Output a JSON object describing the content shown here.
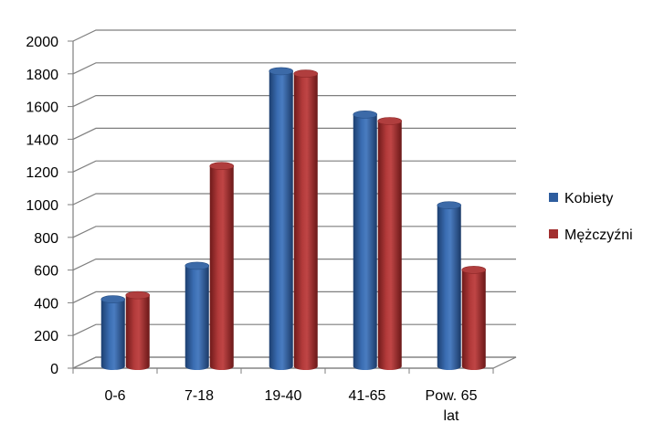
{
  "chart_data": {
    "type": "bar",
    "title": "",
    "xlabel": "",
    "ylabel": "",
    "categories": [
      [
        "0-6"
      ],
      [
        "7-18"
      ],
      [
        "19-40"
      ],
      [
        "41-65"
      ],
      [
        "Pow. 65",
        "lat"
      ]
    ],
    "series": [
      {
        "name": "Kobiety",
        "color": "#2E5D9E",
        "values": [
          410,
          615,
          1805,
          1540,
          985
        ]
      },
      {
        "name": "Mężczyźni",
        "color": "#A12E2E",
        "values": [
          435,
          1225,
          1790,
          1500,
          590
        ]
      }
    ],
    "ylim": [
      0,
      2000
    ],
    "yticks": [
      0,
      200,
      400,
      600,
      800,
      1000,
      1200,
      1400,
      1600,
      1800,
      2000
    ],
    "grid": true,
    "legend": "right",
    "style": "3d-cylinder"
  }
}
